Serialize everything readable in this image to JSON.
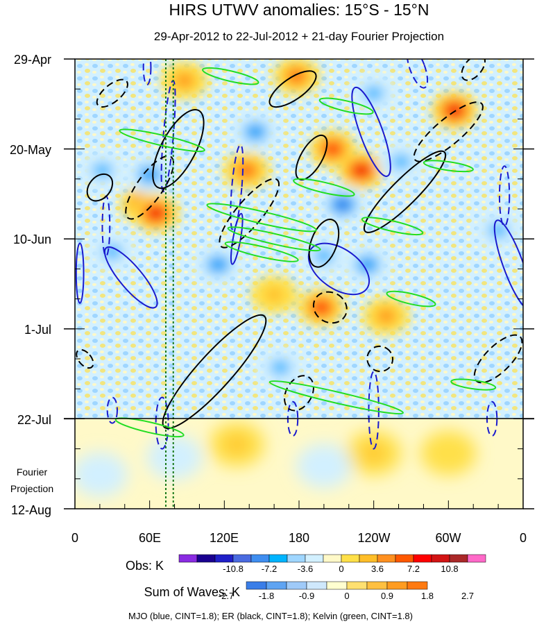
{
  "chart_data": {
    "type": "heatmap",
    "title": "HIRS UTWV anomalies: 15°S - 15°N",
    "subtitle": "29-Apr-2012 to 22-Jul-2012 + 21-day Fourier Projection",
    "x_ticks": [
      "0",
      "60E",
      "120E",
      "180",
      "120W",
      "60W",
      "0"
    ],
    "y_ticks": [
      "29-Apr",
      "20-May",
      "10-Jun",
      "1-Jul",
      "22-Jul",
      "12-Aug"
    ],
    "projection_label": [
      "Fourier",
      "Projection"
    ],
    "xlim": [
      0,
      360
    ],
    "ylim_days": [
      0,
      105
    ],
    "observation_end_day": 84,
    "reference_lines_lon": [
      73,
      79
    ],
    "anomaly_blobs": [
      {
        "lon": 55,
        "day": 34,
        "value": 9
      },
      {
        "lon": 65,
        "day": 36,
        "value": 10
      },
      {
        "lon": 138,
        "day": 26,
        "value": 8
      },
      {
        "lon": 178,
        "day": 4,
        "value": 7
      },
      {
        "lon": 207,
        "day": 21,
        "value": 9
      },
      {
        "lon": 230,
        "day": 26,
        "value": 10
      },
      {
        "lon": 305,
        "day": 12,
        "value": 11
      },
      {
        "lon": 198,
        "day": 58,
        "value": 9
      },
      {
        "lon": 88,
        "day": 5,
        "value": 6
      },
      {
        "lon": 250,
        "day": 60,
        "value": 5
      },
      {
        "lon": 160,
        "day": 55,
        "value": 4
      },
      {
        "lon": 22,
        "day": 26,
        "value": -5
      },
      {
        "lon": 60,
        "day": 27,
        "value": -7
      },
      {
        "lon": 115,
        "day": 48,
        "value": -7
      },
      {
        "lon": 145,
        "day": 17,
        "value": -8
      },
      {
        "lon": 215,
        "day": 34,
        "value": -9
      },
      {
        "lon": 262,
        "day": 24,
        "value": -6
      },
      {
        "lon": 240,
        "day": 8,
        "value": -6
      },
      {
        "lon": 200,
        "day": 46,
        "value": -6
      },
      {
        "lon": 30,
        "day": 45,
        "value": -6
      },
      {
        "lon": 340,
        "day": 40,
        "value": -6
      },
      {
        "lon": 165,
        "day": 72,
        "value": -6
      },
      {
        "lon": 235,
        "day": 48,
        "value": -7
      },
      {
        "lon": 240,
        "day": 92,
        "value": 4
      },
      {
        "lon": 130,
        "day": 90,
        "value": 3
      },
      {
        "lon": 200,
        "day": 95,
        "value": -2
      },
      {
        "lon": 80,
        "day": 93,
        "value": -2
      },
      {
        "lon": 300,
        "day": 92,
        "value": 2
      },
      {
        "lon": 20,
        "day": 97,
        "value": -2
      }
    ],
    "contour_series": [
      {
        "name": "MJO",
        "color": "#1a1acd",
        "cint": 1.8,
        "ellipses": [
          {
            "lon": 45,
            "day": 51,
            "a_lon": 9,
            "a_day": 9,
            "angle": -40,
            "dash": false
          },
          {
            "lon": 238,
            "day": 17,
            "a_lon": 9,
            "a_day": 11,
            "angle": -20,
            "dash": false
          },
          {
            "lon": 212,
            "day": 49,
            "a_lon": 16,
            "a_day": 8,
            "angle": -55,
            "dash": false
          },
          {
            "lon": 352,
            "day": 48,
            "a_lon": 8,
            "a_day": 11,
            "angle": -20,
            "dash": false
          },
          {
            "lon": 130,
            "day": 42,
            "a_lon": 3,
            "a_day": 6,
            "angle": 10,
            "dash": false
          },
          {
            "lon": 4,
            "day": 50,
            "a_lon": 3,
            "a_day": 7,
            "angle": 0,
            "dash": false
          },
          {
            "lon": 75,
            "day": 18,
            "a_lon": 4,
            "a_day": 13,
            "angle": 5,
            "dash": true
          },
          {
            "lon": 130,
            "day": 30,
            "a_lon": 4,
            "a_day": 10,
            "angle": 5,
            "dash": true
          },
          {
            "lon": 240,
            "day": 82,
            "a_lon": 4,
            "a_day": 9,
            "angle": 0,
            "dash": true
          },
          {
            "lon": 25,
            "day": 39,
            "a_lon": 3,
            "a_day": 7,
            "angle": 0,
            "dash": true
          },
          {
            "lon": 275,
            "day": 2,
            "a_lon": 6,
            "a_day": 5,
            "angle": -20,
            "dash": true
          },
          {
            "lon": 345,
            "day": 32,
            "a_lon": 4,
            "a_day": 7,
            "angle": 0,
            "dash": true
          },
          {
            "lon": 58,
            "day": 2,
            "a_lon": 3,
            "a_day": 4,
            "angle": 0,
            "dash": true
          },
          {
            "lon": 70,
            "day": 85,
            "a_lon": 5,
            "a_day": 6,
            "angle": 0,
            "dash": true
          },
          {
            "lon": 30,
            "day": 82,
            "a_lon": 4,
            "a_day": 3,
            "angle": 0,
            "dash": true
          },
          {
            "lon": 175,
            "day": 84,
            "a_lon": 4,
            "a_day": 4,
            "angle": 0,
            "dash": true
          },
          {
            "lon": 335,
            "day": 84,
            "a_lon": 4,
            "a_day": 4,
            "angle": 0,
            "dash": true
          }
        ]
      },
      {
        "name": "ER",
        "color": "#000000",
        "cint": 1.8,
        "ellipses": [
          {
            "lon": 112,
            "day": 73,
            "a_lon": 60,
            "a_day": 4,
            "angle": -48,
            "dash": false
          },
          {
            "lon": 83,
            "day": 21,
            "a_lon": 35,
            "a_day": 4,
            "angle": -62,
            "dash": false
          },
          {
            "lon": 175,
            "day": 7,
            "a_lon": 22,
            "a_day": 2.5,
            "angle": -35,
            "dash": false
          },
          {
            "lon": 265,
            "day": 31,
            "a_lon": 45,
            "a_day": 3,
            "angle": -45,
            "dash": false
          },
          {
            "lon": 190,
            "day": 23,
            "a_lon": 20,
            "a_day": 2.5,
            "angle": -60,
            "dash": false
          },
          {
            "lon": 200,
            "day": 43,
            "a_lon": 20,
            "a_day": 3,
            "angle": -70,
            "dash": false
          },
          {
            "lon": 20,
            "day": 30,
            "a_lon": 12,
            "a_day": 2.5,
            "angle": -50,
            "dash": false
          },
          {
            "lon": 140,
            "day": 36,
            "a_lon": 35,
            "a_day": 3,
            "angle": -50,
            "dash": true
          },
          {
            "lon": 205,
            "day": 58,
            "a_lon": 12,
            "a_day": 4,
            "angle": -60,
            "dash": true
          },
          {
            "lon": 60,
            "day": 30,
            "a_lon": 30,
            "a_day": 3,
            "angle": -55,
            "dash": true
          },
          {
            "lon": 300,
            "day": 17,
            "a_lon": 35,
            "a_day": 3,
            "angle": -40,
            "dash": true
          },
          {
            "lon": 30,
            "day": 8,
            "a_lon": 15,
            "a_day": 2,
            "angle": -40,
            "dash": true
          },
          {
            "lon": 340,
            "day": 70,
            "a_lon": 25,
            "a_day": 3,
            "angle": -45,
            "dash": true
          },
          {
            "lon": 180,
            "day": 78,
            "a_lon": 15,
            "a_day": 3,
            "angle": -60,
            "dash": true
          },
          {
            "lon": 245,
            "day": 70,
            "a_lon": 10,
            "a_day": 3,
            "angle": -60,
            "dash": true
          },
          {
            "lon": 320,
            "day": 2,
            "a_lon": 12,
            "a_day": 2,
            "angle": -50,
            "dash": true
          },
          {
            "lon": 8,
            "day": 70,
            "a_lon": 5,
            "a_day": 2.5,
            "angle": -40,
            "dash": true
          }
        ]
      },
      {
        "name": "Kelvin",
        "color": "#22dd22",
        "cint": 1.8,
        "ellipses": [
          {
            "lon": 125,
            "day": 4,
            "a_lon": 23,
            "a_day": 1.2,
            "angle": 13,
            "dash": false
          },
          {
            "lon": 218,
            "day": 11,
            "a_lon": 22,
            "a_day": 1.2,
            "angle": 13,
            "dash": false
          },
          {
            "lon": 70,
            "day": 19,
            "a_lon": 35,
            "a_day": 1.2,
            "angle": 13,
            "dash": false
          },
          {
            "lon": 200,
            "day": 30,
            "a_lon": 25,
            "a_day": 1.2,
            "angle": 13,
            "dash": false
          },
          {
            "lon": 150,
            "day": 37,
            "a_lon": 45,
            "a_day": 1.4,
            "angle": 13,
            "dash": false
          },
          {
            "lon": 150,
            "day": 45,
            "a_lon": 30,
            "a_day": 1.2,
            "angle": 13,
            "dash": false
          },
          {
            "lon": 255,
            "day": 39,
            "a_lon": 25,
            "a_day": 1.2,
            "angle": 13,
            "dash": false
          },
          {
            "lon": 160,
            "day": 42,
            "a_lon": 38,
            "a_day": 1.2,
            "angle": 13,
            "dash": false
          },
          {
            "lon": 270,
            "day": 56,
            "a_lon": 20,
            "a_day": 1.2,
            "angle": 13,
            "dash": false
          },
          {
            "lon": 210,
            "day": 79,
            "a_lon": 55,
            "a_day": 1.3,
            "angle": 13,
            "dash": false
          },
          {
            "lon": 60,
            "day": 86,
            "a_lon": 28,
            "a_day": 1.2,
            "angle": 13,
            "dash": false
          },
          {
            "lon": 300,
            "day": 25,
            "a_lon": 20,
            "a_day": 1,
            "angle": 8,
            "dash": false
          },
          {
            "lon": 320,
            "day": 76,
            "a_lon": 18,
            "a_day": 1,
            "angle": 8,
            "dash": false
          }
        ]
      }
    ],
    "obs_legend": {
      "label": "Obs: K",
      "colors": [
        "#8a2be2",
        "#1a0090",
        "#2020c8",
        "#4a6be0",
        "#3f8ef0",
        "#00b4ff",
        "#9fd6ff",
        "#d2f0ff",
        "#fff9c8",
        "#ffe048",
        "#ffbe28",
        "#ff9020",
        "#ff5800",
        "#ff0000",
        "#d21414",
        "#aa2828",
        "#ff69c8"
      ],
      "tick_labels": [
        "-10.8",
        "-7.2",
        "-3.6",
        "0",
        "3.6",
        "7.2",
        "10.8"
      ]
    },
    "waves_legend": {
      "label": "Sum of Waves: K",
      "colors": [
        "#3a7ee8",
        "#5fa4f2",
        "#9fcaf8",
        "#cfe8fc",
        "#ffffd0",
        "#ffe070",
        "#ffc040",
        "#ff9c20",
        "#ff7a10"
      ],
      "tick_labels": [
        "-2.7",
        "-1.8",
        "-0.9",
        "0",
        "0.9",
        "1.8",
        "2.7"
      ]
    },
    "footnote": "MJO (blue, CINT=1.8); ER (black, CINT=1.8); Kelvin (green, CINT=1.8)"
  }
}
